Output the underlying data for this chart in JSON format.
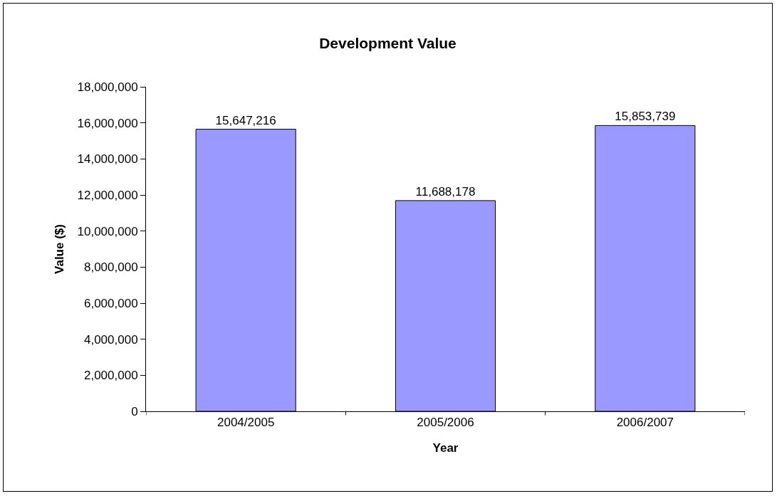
{
  "chart_data": {
    "type": "bar",
    "title": "Development Value",
    "xlabel": "Year",
    "ylabel": "Value ($)",
    "categories": [
      "2004/2005",
      "2005/2006",
      "2006/2007"
    ],
    "values": [
      15647216,
      11688178,
      15853739
    ],
    "value_labels": [
      "15,647,216",
      "11,688,178",
      "15,853,739"
    ],
    "color": "#9999ff",
    "ylim": [
      0,
      18000000
    ],
    "yticks": [
      {
        "value": 0,
        "label": "0"
      },
      {
        "value": 2000000,
        "label": "2,000,000"
      },
      {
        "value": 4000000,
        "label": "4,000,000"
      },
      {
        "value": 6000000,
        "label": "6,000,000"
      },
      {
        "value": 8000000,
        "label": "8,000,000"
      },
      {
        "value": 10000000,
        "label": "10,000,000"
      },
      {
        "value": 12000000,
        "label": "12,000,000"
      },
      {
        "value": 14000000,
        "label": "14,000,000"
      },
      {
        "value": 16000000,
        "label": "16,000,000"
      },
      {
        "value": 18000000,
        "label": "18,000,000"
      }
    ],
    "grid": false
  }
}
